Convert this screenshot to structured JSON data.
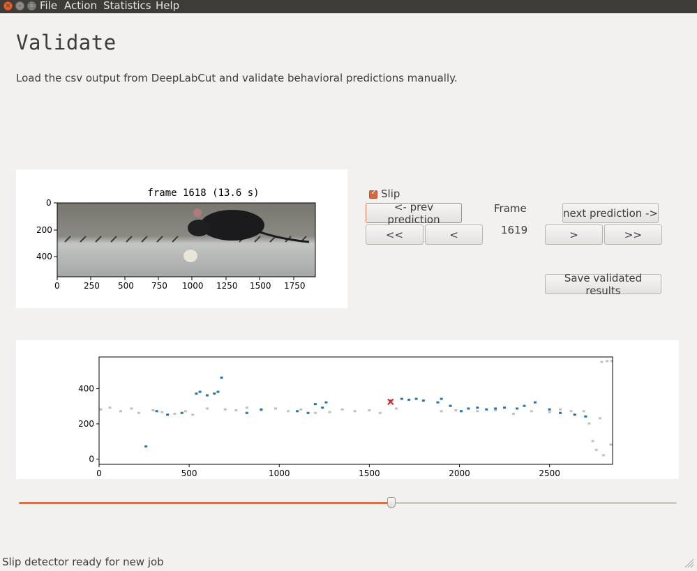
{
  "menu": {
    "items": [
      "File",
      "Action",
      "Statistics",
      "Help"
    ]
  },
  "window_buttons": {
    "close": "×",
    "minimize": "–",
    "maximize": "□"
  },
  "page": {
    "title": "Validate",
    "subtitle": "Load the csv output from DeepLabCut and validate behavioral predictions manually."
  },
  "frame_view": {
    "title": "frame 1618 (13.6 s)",
    "y_ticks": [
      "0",
      "200",
      "400"
    ],
    "x_ticks": [
      "0",
      "250",
      "500",
      "750",
      "1000",
      "1250",
      "1500",
      "1750"
    ]
  },
  "controls": {
    "slip_label": "Slip",
    "slip_checked": true,
    "prev_prediction": "<- prev prediction",
    "next_prediction": "next prediction ->",
    "frame_label": "Frame",
    "frame_value": "1619",
    "back_fast": "<<",
    "back": "<",
    "forward": ">",
    "forward_fast": ">>",
    "save": "Save validated results"
  },
  "chart_data": {
    "type": "scatter",
    "xlim": [
      0,
      2850
    ],
    "ylim": [
      -30,
      580
    ],
    "x_ticks": [
      0,
      500,
      1000,
      1500,
      2000,
      2500
    ],
    "y_ticks": [
      0,
      200,
      400
    ],
    "grid": false,
    "series": [
      {
        "color": "#c0c0c0",
        "points": [
          [
            10,
            280
          ],
          [
            60,
            290
          ],
          [
            120,
            270
          ],
          [
            180,
            285
          ],
          [
            220,
            260
          ],
          [
            300,
            275
          ],
          [
            350,
            265
          ],
          [
            420,
            255
          ],
          [
            480,
            270
          ],
          [
            520,
            250
          ],
          [
            600,
            285
          ],
          [
            700,
            280
          ],
          [
            760,
            275
          ],
          [
            820,
            290
          ],
          [
            900,
            275
          ],
          [
            980,
            285
          ],
          [
            1050,
            270
          ],
          [
            1120,
            280
          ],
          [
            1200,
            260
          ],
          [
            1280,
            265
          ],
          [
            1350,
            280
          ],
          [
            1420,
            270
          ],
          [
            1500,
            275
          ],
          [
            1560,
            260
          ],
          [
            1650,
            285
          ],
          [
            1900,
            270
          ],
          [
            1980,
            275
          ],
          [
            2100,
            270
          ],
          [
            2200,
            275
          ],
          [
            2300,
            255
          ],
          [
            2400,
            270
          ],
          [
            2500,
            265
          ],
          [
            2560,
            280
          ],
          [
            2620,
            270
          ],
          [
            2690,
            270
          ],
          [
            2720,
            200
          ],
          [
            2740,
            100
          ],
          [
            2760,
            50
          ],
          [
            2800,
            20
          ],
          [
            2840,
            80
          ],
          [
            2780,
            230
          ],
          [
            2790,
            550
          ],
          [
            2820,
            555
          ],
          [
            2845,
            555
          ]
        ]
      },
      {
        "color": "#2474b0",
        "points": [
          [
            260,
            70
          ],
          [
            320,
            270
          ],
          [
            380,
            250
          ],
          [
            460,
            260
          ],
          [
            540,
            370
          ],
          [
            560,
            380
          ],
          [
            600,
            360
          ],
          [
            640,
            370
          ],
          [
            660,
            380
          ],
          [
            680,
            460
          ],
          [
            820,
            260
          ],
          [
            900,
            280
          ],
          [
            1100,
            270
          ],
          [
            1160,
            260
          ],
          [
            1200,
            310
          ],
          [
            1240,
            290
          ],
          [
            1260,
            320
          ],
          [
            1620,
            330
          ],
          [
            1680,
            340
          ],
          [
            1720,
            335
          ],
          [
            1760,
            340
          ],
          [
            1800,
            330
          ],
          [
            1880,
            320
          ],
          [
            1900,
            340
          ],
          [
            1950,
            300
          ],
          [
            2010,
            270
          ],
          [
            2050,
            285
          ],
          [
            2100,
            290
          ],
          [
            2150,
            280
          ],
          [
            2200,
            285
          ],
          [
            2250,
            290
          ],
          [
            2320,
            285
          ],
          [
            2360,
            300
          ],
          [
            2420,
            320
          ],
          [
            2500,
            280
          ],
          [
            2560,
            260
          ],
          [
            2640,
            250
          ],
          [
            2700,
            240
          ]
        ]
      }
    ],
    "marker": {
      "x": 1618,
      "y": 325,
      "color": "#d62728"
    }
  },
  "slider": {
    "value": 1618,
    "max": 2850,
    "fraction": 0.568
  },
  "status": {
    "text": "Slip detector ready for new job"
  }
}
